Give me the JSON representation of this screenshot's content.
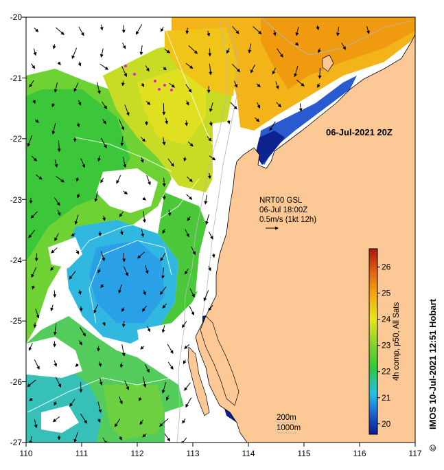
{
  "map": {
    "date_stamp": "06-Jul-2021 20Z",
    "x_ticks": [
      "110",
      "111",
      "112",
      "113",
      "114",
      "115",
      "116",
      "117"
    ],
    "y_ticks": [
      "-20",
      "-21",
      "-22",
      "-23",
      "-24",
      "-25",
      "-26",
      "-27"
    ],
    "lon_range": [
      110,
      117
    ],
    "lat_range": [
      -27,
      -20
    ]
  },
  "current_legend": {
    "line1": "NRT00 GSL",
    "line2": "06-Jul 18:00Z",
    "line3": "0.5m/s (1kt 12h)"
  },
  "isobath_legend": {
    "line1": "200m",
    "line2": "1000m"
  },
  "colorbar": {
    "label": "4h comp, p50, All Sats",
    "ticks": [
      "20",
      "21",
      "22",
      "23",
      "24",
      "25",
      "26"
    ],
    "range": [
      19.6,
      26.7
    ],
    "colors": [
      "#0a1a8c",
      "#1e6ad6",
      "#25c0e8",
      "#2ec83a",
      "#8ed628",
      "#e8e41e",
      "#f4a40e",
      "#e25f12",
      "#a81808"
    ]
  },
  "credit": {
    "text": "IMOS 10-Jul-2021 12:51 Hobart",
    "symbol": "©"
  },
  "colors": {
    "land": "#fbc896",
    "no_data": "#ffffff"
  }
}
